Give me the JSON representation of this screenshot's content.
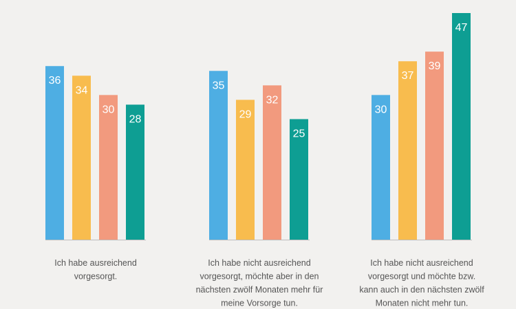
{
  "chart_data": {
    "type": "bar",
    "title": "",
    "xlabel": "",
    "ylabel": "",
    "ylim": [
      0,
      50
    ],
    "grid": false,
    "legend": "none",
    "categories": [
      [
        "Ich habe ausreichend",
        "vorgesorgt."
      ],
      [
        "Ich habe nicht ausreichend",
        "vorgesorgt, möchte aber in den",
        "nächsten zwölf Monaten mehr für",
        "meine Vorsorge tun."
      ],
      [
        "Ich habe nicht ausreichend",
        "vorgesorgt und möchte bzw.",
        "kann auch in den nächsten zwölf",
        "Monaten nicht mehr tun."
      ]
    ],
    "series": [
      {
        "color": "#4eaee3",
        "values": [
          36,
          35,
          30
        ]
      },
      {
        "color": "#f8bc4e",
        "values": [
          34,
          29,
          37
        ]
      },
      {
        "color": "#f29a7e",
        "values": [
          30,
          32,
          39
        ]
      },
      {
        "color": "#0e9e93",
        "values": [
          28,
          25,
          47
        ]
      }
    ]
  }
}
